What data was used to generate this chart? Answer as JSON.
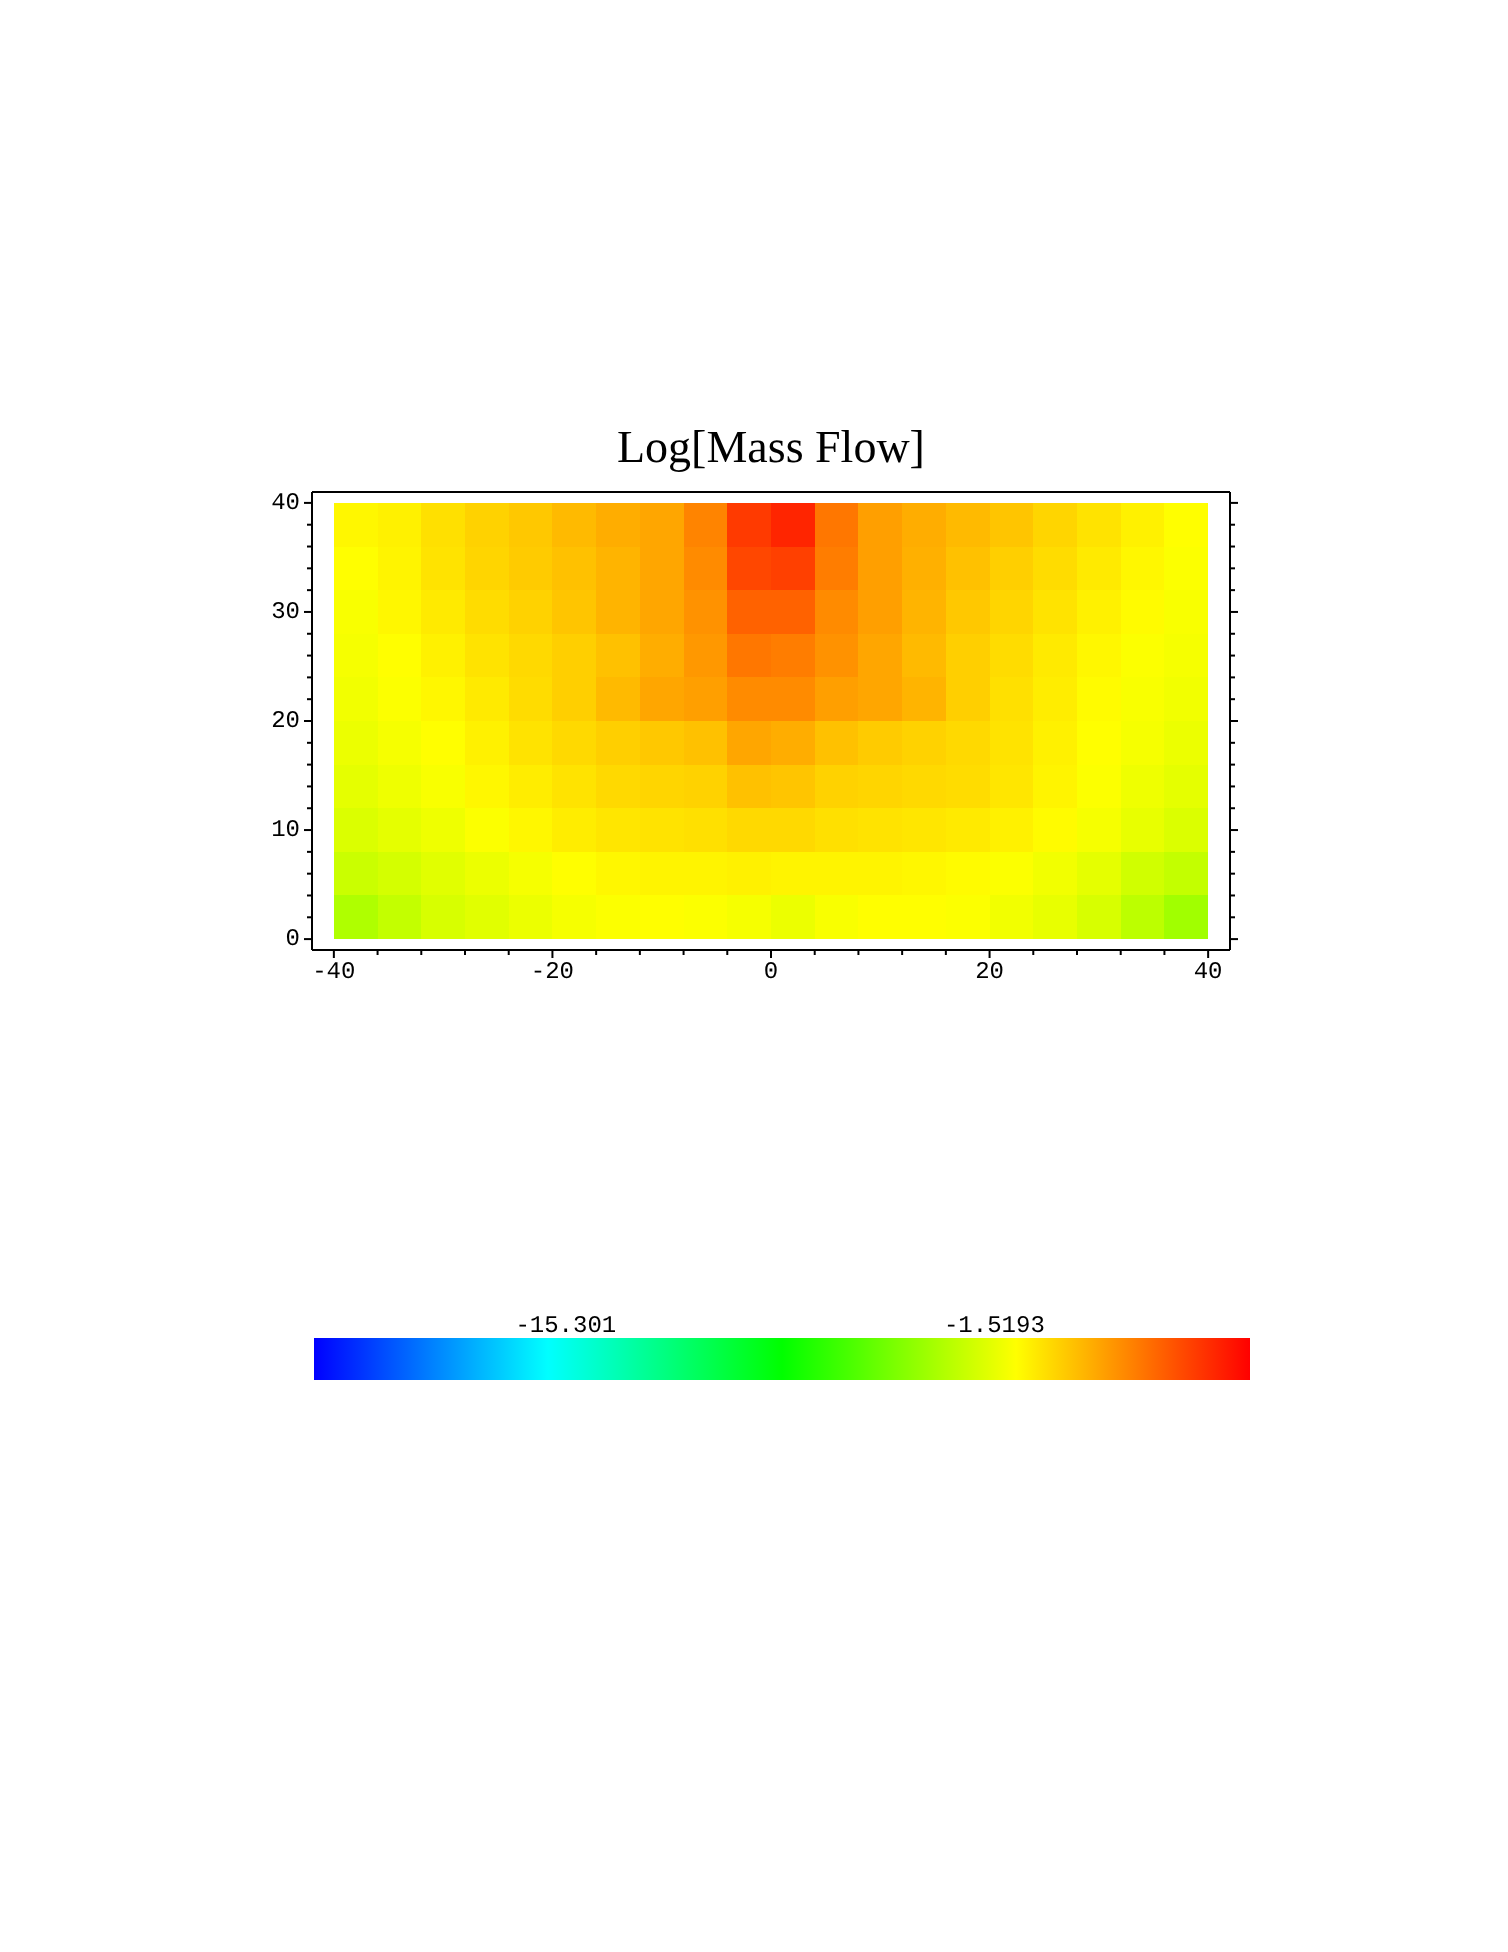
{
  "chart_data": {
    "type": "heatmap",
    "title": "Log[Mass Flow]",
    "x": [
      -38,
      -34,
      -30,
      -26,
      -22,
      -18,
      -14,
      -10,
      -6,
      -2,
      2,
      6,
      10,
      14,
      18,
      22,
      26,
      30,
      34,
      38
    ],
    "cells": [
      [
        -0.6,
        -0.4,
        0.1,
        0.5,
        0.8,
        1.2,
        1.6,
        1.8,
        2.8,
        5.0,
        5.6,
        3.2,
        2.0,
        1.6,
        1.2,
        0.9,
        0.4,
        0.0,
        -0.4,
        -0.8
      ],
      [
        -0.8,
        -0.5,
        0.0,
        0.4,
        0.7,
        1.0,
        1.4,
        1.8,
        2.6,
        4.6,
        4.8,
        3.0,
        2.0,
        1.5,
        1.0,
        0.6,
        0.2,
        -0.2,
        -0.6,
        -0.9
      ],
      [
        -1.0,
        -0.6,
        -0.2,
        0.2,
        0.5,
        0.9,
        1.4,
        1.8,
        2.4,
        3.8,
        3.8,
        2.6,
        2.0,
        1.4,
        0.8,
        0.4,
        0.0,
        -0.4,
        -0.7,
        -1.0
      ],
      [
        -1.1,
        -0.8,
        -0.4,
        0.0,
        0.3,
        0.6,
        1.0,
        1.6,
        2.2,
        3.2,
        3.0,
        2.4,
        1.8,
        1.2,
        0.6,
        0.2,
        -0.2,
        -0.6,
        -0.9,
        -1.1
      ],
      [
        -1.2,
        -0.9,
        -0.6,
        -0.2,
        0.2,
        0.6,
        1.2,
        1.8,
        2.0,
        2.6,
        2.6,
        2.0,
        1.8,
        1.4,
        0.6,
        0.1,
        -0.3,
        -0.7,
        -1.0,
        -1.2
      ],
      [
        -1.4,
        -1.1,
        -0.8,
        -0.4,
        0.0,
        0.3,
        0.6,
        0.8,
        1.0,
        1.8,
        1.6,
        1.0,
        0.7,
        0.5,
        0.3,
        0.0,
        -0.4,
        -0.8,
        -1.1,
        -1.4
      ],
      [
        -1.6,
        -1.3,
        -1.0,
        -0.6,
        -0.3,
        0.0,
        0.3,
        0.4,
        0.5,
        1.0,
        0.9,
        0.5,
        0.4,
        0.3,
        0.2,
        -0.1,
        -0.5,
        -0.9,
        -1.3,
        -1.6
      ],
      [
        -1.9,
        -1.6,
        -1.3,
        -0.9,
        -0.6,
        -0.3,
        -0.1,
        0.0,
        0.1,
        0.3,
        0.3,
        0.1,
        0.0,
        -0.1,
        -0.2,
        -0.4,
        -0.7,
        -1.1,
        -1.5,
        -1.9
      ],
      [
        -2.4,
        -2.1,
        -1.7,
        -1.4,
        -1.1,
        -0.8,
        -0.6,
        -0.5,
        -0.5,
        -0.4,
        -0.5,
        -0.5,
        -0.5,
        -0.6,
        -0.7,
        -0.9,
        -1.2,
        -1.6,
        -2.2,
        -2.6
      ],
      [
        -3.2,
        -2.6,
        -2.0,
        -1.7,
        -1.4,
        -1.1,
        -0.9,
        -0.8,
        -0.9,
        -1.1,
        -1.4,
        -1.0,
        -0.8,
        -0.8,
        -0.9,
        -1.2,
        -1.5,
        -2.0,
        -2.8,
        -3.6
      ]
    ],
    "clim": [
      -23.4,
      6.7
    ],
    "cticks": [
      -15.301,
      -1.5193
    ],
    "xlim": [
      -42,
      42
    ],
    "xticks": [
      -40,
      {
        "value": -36,
        "label": null
      },
      {
        "value": -32,
        "label": null
      },
      {
        "value": -28,
        "label": null
      },
      {
        "value": -24,
        "label": null
      },
      -20,
      {
        "value": -16,
        "label": null
      },
      {
        "value": -12,
        "label": null
      },
      {
        "value": -8,
        "label": null
      },
      {
        "value": -4,
        "label": null
      },
      0,
      {
        "value": 4,
        "label": null
      },
      {
        "value": 8,
        "label": null
      },
      {
        "value": 12,
        "label": null
      },
      {
        "value": 16,
        "label": null
      },
      20,
      {
        "value": 24,
        "label": null
      },
      {
        "value": 28,
        "label": null
      },
      {
        "value": 32,
        "label": null
      },
      {
        "value": 36,
        "label": null
      },
      40
    ],
    "ylim": [
      -1,
      41
    ],
    "yticks": [
      0,
      {
        "value": 2,
        "label": null
      },
      {
        "value": 4,
        "label": null
      },
      {
        "value": 6,
        "label": null
      },
      {
        "value": 8,
        "label": null
      },
      10,
      {
        "value": 12,
        "label": null
      },
      {
        "value": 14,
        "label": null
      },
      {
        "value": 16,
        "label": null
      },
      {
        "value": 18,
        "label": null
      },
      20,
      {
        "value": 22,
        "label": null
      },
      {
        "value": 24,
        "label": null
      },
      {
        "value": 26,
        "label": null
      },
      {
        "value": 28,
        "label": null
      },
      30,
      {
        "value": 32,
        "label": null
      },
      {
        "value": 34,
        "label": null
      },
      {
        "value": 36,
        "label": null
      },
      {
        "value": 38,
        "label": null
      },
      40
    ]
  }
}
